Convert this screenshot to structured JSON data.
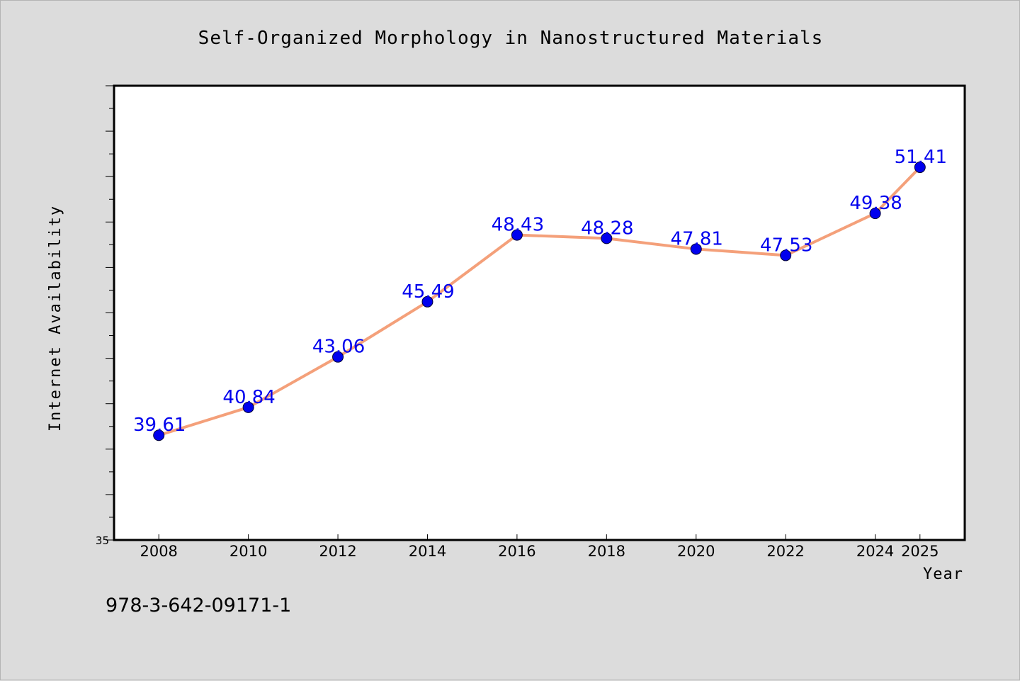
{
  "chart_data": {
    "type": "line",
    "title": "Self-Organized Morphology in Nanostructured Materials",
    "xlabel": "Year",
    "ylabel": "Internet Availability",
    "x": [
      2008,
      2010,
      2012,
      2014,
      2016,
      2018,
      2020,
      2022,
      2024,
      2025
    ],
    "x_tick_labels": [
      "2008",
      "2010",
      "2012",
      "2014",
      "2016",
      "2018",
      "2020",
      "2022",
      "2024",
      "2025"
    ],
    "series": [
      {
        "values": [
          39.61,
          40.84,
          43.06,
          45.49,
          48.43,
          48.28,
          47.81,
          47.53,
          49.38,
          51.41
        ],
        "data_labels": [
          "39.61",
          "40.84",
          "43.06",
          "45.49",
          "48.43",
          "48.28",
          "47.81",
          "47.53",
          "49.38",
          "51.41"
        ]
      }
    ],
    "y_tick_labels": [
      "35"
    ],
    "ylim": [
      35,
      55
    ],
    "grid": false,
    "line_color": "#f4a07a",
    "marker_color": "#0000ee",
    "label_color": "#0000ee",
    "plot_background": "#ffffff",
    "page_background": "#dcdcdc"
  },
  "annotation": {
    "isbn": "978-3-642-09171-1"
  }
}
